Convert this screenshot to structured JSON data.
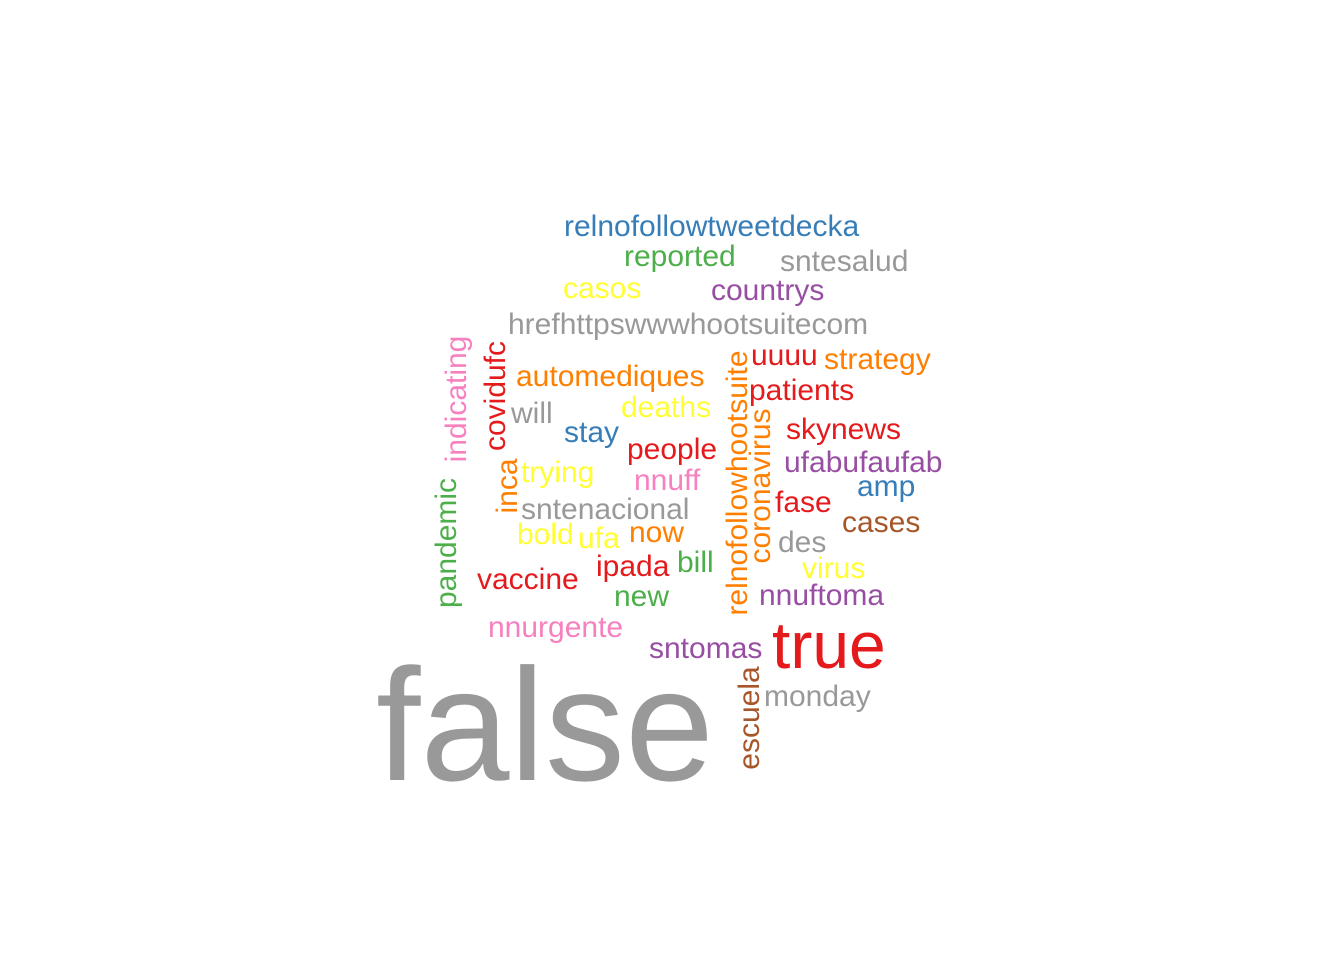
{
  "colors": {
    "gray": "#999999",
    "red": "#e41a1c",
    "blue": "#377eb8",
    "green": "#4daf4a",
    "purple": "#984ea3",
    "orange": "#ff7f00",
    "yellow": "#ffff33",
    "brown": "#a65628",
    "pink": "#f781bf"
  },
  "words": [
    {
      "text": "false",
      "color": "gray"
    },
    {
      "text": "true",
      "color": "red"
    },
    {
      "text": "relnofollowtweetdecka",
      "color": "blue"
    },
    {
      "text": "reported",
      "color": "green"
    },
    {
      "text": "sntesalud",
      "color": "gray"
    },
    {
      "text": "casos",
      "color": "yellow"
    },
    {
      "text": "countrys",
      "color": "purple"
    },
    {
      "text": "hrefhttpswwwhootsuitecom",
      "color": "gray"
    },
    {
      "text": "indicating",
      "color": "pink",
      "rotated": true
    },
    {
      "text": "covidufc",
      "color": "red",
      "rotated": true
    },
    {
      "text": "relnofollowhootsuite",
      "color": "orange",
      "rotated": true
    },
    {
      "text": "uuuu",
      "color": "red"
    },
    {
      "text": "strategy",
      "color": "orange"
    },
    {
      "text": "automediques",
      "color": "orange"
    },
    {
      "text": "patients",
      "color": "red"
    },
    {
      "text": "will",
      "color": "gray"
    },
    {
      "text": "deaths",
      "color": "yellow"
    },
    {
      "text": "coronavirus",
      "color": "orange",
      "rotated": true
    },
    {
      "text": "skynews",
      "color": "red"
    },
    {
      "text": "stay",
      "color": "blue"
    },
    {
      "text": "people",
      "color": "red"
    },
    {
      "text": "ufabufaufab",
      "color": "purple"
    },
    {
      "text": "pandemic",
      "color": "green",
      "rotated": true
    },
    {
      "text": "inca",
      "color": "orange",
      "rotated": true
    },
    {
      "text": "trying",
      "color": "yellow"
    },
    {
      "text": "nnuff",
      "color": "pink"
    },
    {
      "text": "amp",
      "color": "blue"
    },
    {
      "text": "fase",
      "color": "red"
    },
    {
      "text": "sntenacional",
      "color": "gray"
    },
    {
      "text": "cases",
      "color": "brown"
    },
    {
      "text": "bold",
      "color": "yellow"
    },
    {
      "text": "ufa",
      "color": "yellow"
    },
    {
      "text": "now",
      "color": "orange"
    },
    {
      "text": "des",
      "color": "gray"
    },
    {
      "text": "bill",
      "color": "green"
    },
    {
      "text": "virus",
      "color": "yellow"
    },
    {
      "text": "vaccine",
      "color": "red"
    },
    {
      "text": "ipada",
      "color": "red"
    },
    {
      "text": "new",
      "color": "green"
    },
    {
      "text": "nnuftoma",
      "color": "purple"
    },
    {
      "text": "nnurgente",
      "color": "pink"
    },
    {
      "text": "sntomas",
      "color": "purple"
    },
    {
      "text": "escuela",
      "color": "brown",
      "rotated": true
    },
    {
      "text": "monday",
      "color": "gray"
    }
  ]
}
